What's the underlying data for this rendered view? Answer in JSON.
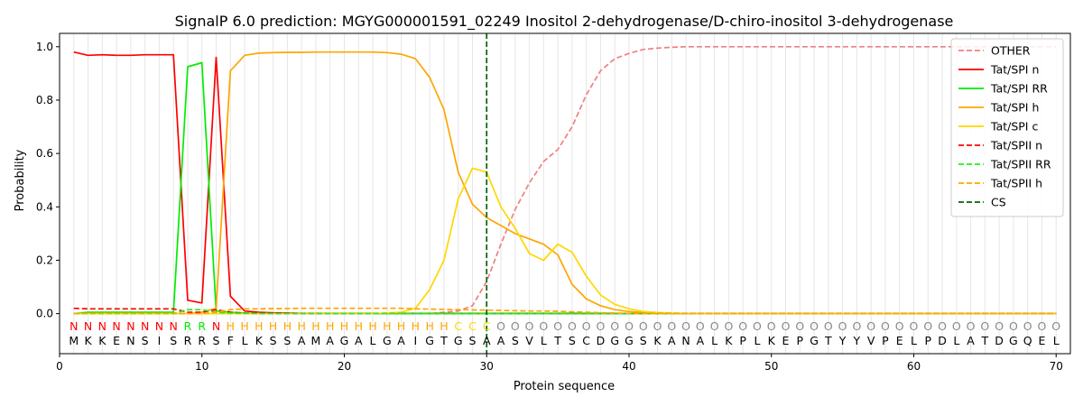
{
  "chart_data": {
    "type": "line",
    "title": "SignalP 6.0 prediction: MGYG000001591_02249 Inositol 2-dehydrogenase/D-chiro-inositol 3-dehydrogenase",
    "xlabel": "Protein sequence",
    "ylabel": "Probability",
    "xlim": [
      0,
      71
    ],
    "ylim": [
      -0.15,
      1.05
    ],
    "xticks": [
      0,
      10,
      20,
      30,
      40,
      50,
      60,
      70
    ],
    "yticks": [
      0.0,
      0.2,
      0.4,
      0.6,
      0.8,
      1.0
    ],
    "grid": "vertical lines at each residue position",
    "legend_position": "top-right",
    "sequence": [
      "M",
      "K",
      "K",
      "E",
      "N",
      "S",
      "I",
      "S",
      "R",
      "R",
      "S",
      "F",
      "L",
      "K",
      "S",
      "S",
      "A",
      "M",
      "A",
      "G",
      "A",
      "L",
      "G",
      "A",
      "I",
      "G",
      "T",
      "G",
      "S",
      "A",
      "A",
      "S",
      "V",
      "L",
      "T",
      "S",
      "C",
      "D",
      "G",
      "G",
      "S",
      "K",
      "A",
      "N",
      "A",
      "L",
      "K",
      "P",
      "L",
      "K",
      "E",
      "P",
      "G",
      "T",
      "Y",
      "Y",
      "V",
      "P",
      "E",
      "L",
      "P",
      "D",
      "L",
      "A",
      "T",
      "D",
      "G",
      "Q",
      "E",
      "L"
    ],
    "states": [
      "N",
      "N",
      "N",
      "N",
      "N",
      "N",
      "N",
      "N",
      "R",
      "R",
      "N",
      "H",
      "H",
      "H",
      "H",
      "H",
      "H",
      "H",
      "H",
      "H",
      "H",
      "H",
      "H",
      "H",
      "H",
      "H",
      "H",
      "C",
      "C",
      "C",
      "O",
      "O",
      "O",
      "O",
      "O",
      "O",
      "O",
      "O",
      "O",
      "O",
      "O",
      "O",
      "O",
      "O",
      "O",
      "O",
      "O",
      "O",
      "O",
      "O",
      "O",
      "O",
      "O",
      "O",
      "O",
      "O",
      "O",
      "O",
      "O",
      "O",
      "O",
      "O",
      "O",
      "O",
      "O",
      "O",
      "O",
      "O",
      "O",
      "O"
    ],
    "state_colors": {
      "N": "#ff0000",
      "R": "#00ee00",
      "H": "#ffa500",
      "C": "#ffd700",
      "O": "#888888"
    },
    "cleavage_site": 30,
    "series": [
      {
        "name": "OTHER",
        "color": "#f08080",
        "dash": true,
        "values": [
          0.0,
          0.0,
          0.0,
          0.0,
          0.0,
          0.0,
          0.0,
          0.0,
          0.0,
          0.0,
          0.0,
          0.0,
          0.0,
          0.0,
          0.0,
          0.0,
          0.0,
          0.0,
          0.0,
          0.0,
          0.0,
          0.0,
          0.0,
          0.0,
          0.0,
          0.0,
          0.005,
          0.01,
          0.03,
          0.12,
          0.26,
          0.39,
          0.49,
          0.57,
          0.615,
          0.7,
          0.82,
          0.91,
          0.955,
          0.975,
          0.99,
          0.995,
          0.998,
          1.0,
          1.0,
          1.0,
          1.0,
          1.0,
          1.0,
          1.0,
          1.0,
          1.0,
          1.0,
          1.0,
          1.0,
          1.0,
          1.0,
          1.0,
          1.0,
          1.0,
          1.0,
          1.0,
          1.0,
          1.0,
          1.0,
          1.0,
          1.0,
          1.0,
          1.0,
          1.0
        ]
      },
      {
        "name": "Tat/SPI n",
        "color": "#ff0000",
        "dash": false,
        "values": [
          0.98,
          0.968,
          0.97,
          0.968,
          0.968,
          0.97,
          0.97,
          0.97,
          0.05,
          0.04,
          0.96,
          0.065,
          0.01,
          0.005,
          0.003,
          0.002,
          0.001,
          0.001,
          0.001,
          0.001,
          0.001,
          0.001,
          0.001,
          0.001,
          0.001,
          0.001,
          0.001,
          0.001,
          0.001,
          0.001,
          0.001,
          0.001,
          0.001,
          0.001,
          0.001,
          0.001,
          0.001,
          0.001,
          0.0,
          0.0,
          0.0,
          0.0,
          0.0,
          0.0,
          0.0,
          0.0,
          0.0,
          0.0,
          0.0,
          0.0,
          0.0,
          0.0,
          0.0,
          0.0,
          0.0,
          0.0,
          0.0,
          0.0,
          0.0,
          0.0,
          0.0,
          0.0,
          0.0,
          0.0,
          0.0,
          0.0,
          0.0,
          0.0,
          0.0,
          0.0
        ]
      },
      {
        "name": "Tat/SPI RR",
        "color": "#00ee00",
        "dash": false,
        "values": [
          0.0,
          0.005,
          0.005,
          0.005,
          0.005,
          0.005,
          0.005,
          0.005,
          0.925,
          0.94,
          0.01,
          0.005,
          0.002,
          0.001,
          0.0,
          0.0,
          0.0,
          0.0,
          0.0,
          0.0,
          0.0,
          0.0,
          0.0,
          0.0,
          0.0,
          0.0,
          0.0,
          0.0,
          0.0,
          0.0,
          0.0,
          0.0,
          0.0,
          0.0,
          0.0,
          0.0,
          0.0,
          0.0,
          0.0,
          0.0,
          0.0,
          0.0,
          0.0,
          0.0,
          0.0,
          0.0,
          0.0,
          0.0,
          0.0,
          0.0,
          0.0,
          0.0,
          0.0,
          0.0,
          0.0,
          0.0,
          0.0,
          0.0,
          0.0,
          0.0,
          0.0,
          0.0,
          0.0,
          0.0,
          0.0,
          0.0,
          0.0,
          0.0,
          0.0,
          0.0
        ]
      },
      {
        "name": "Tat/SPI h",
        "color": "#ffa500",
        "dash": false,
        "values": [
          0.0,
          0.0,
          0.0,
          0.0,
          0.0,
          0.0,
          0.0,
          0.0,
          0.0,
          0.005,
          0.02,
          0.91,
          0.968,
          0.976,
          0.978,
          0.979,
          0.979,
          0.98,
          0.98,
          0.98,
          0.98,
          0.98,
          0.978,
          0.972,
          0.955,
          0.885,
          0.765,
          0.53,
          0.41,
          0.36,
          0.33,
          0.3,
          0.28,
          0.26,
          0.22,
          0.11,
          0.055,
          0.03,
          0.015,
          0.008,
          0.004,
          0.002,
          0.001,
          0.0,
          0.0,
          0.0,
          0.0,
          0.0,
          0.0,
          0.0,
          0.0,
          0.0,
          0.0,
          0.0,
          0.0,
          0.0,
          0.0,
          0.0,
          0.0,
          0.0,
          0.0,
          0.0,
          0.0,
          0.0,
          0.0,
          0.0,
          0.0,
          0.0,
          0.0,
          0.0
        ]
      },
      {
        "name": "Tat/SPI c",
        "color": "#ffd700",
        "dash": false,
        "values": [
          0.0,
          0.0,
          0.0,
          0.0,
          0.0,
          0.0,
          0.0,
          0.0,
          0.0,
          0.0,
          0.0,
          0.0,
          0.0,
          0.0,
          0.0,
          0.0,
          0.0,
          0.0,
          0.0,
          0.0,
          0.0,
          0.0,
          0.002,
          0.005,
          0.02,
          0.09,
          0.2,
          0.43,
          0.545,
          0.53,
          0.4,
          0.32,
          0.225,
          0.2,
          0.26,
          0.23,
          0.14,
          0.07,
          0.035,
          0.018,
          0.008,
          0.004,
          0.002,
          0.001,
          0.0,
          0.0,
          0.0,
          0.0,
          0.0,
          0.0,
          0.0,
          0.0,
          0.0,
          0.0,
          0.0,
          0.0,
          0.0,
          0.0,
          0.0,
          0.0,
          0.0,
          0.0,
          0.0,
          0.0,
          0.0,
          0.0,
          0.0,
          0.0,
          0.0,
          0.0
        ]
      },
      {
        "name": "Tat/SPII n",
        "color": "#ff0000",
        "dash": true,
        "values": [
          0.02,
          0.018,
          0.018,
          0.018,
          0.018,
          0.018,
          0.018,
          0.018,
          0.005,
          0.005,
          0.015,
          0.005,
          0.002,
          0.001,
          0.001,
          0.001,
          0.001,
          0.001,
          0.0,
          0.0,
          0.0,
          0.0,
          0.0,
          0.0,
          0.0,
          0.0,
          0.0,
          0.0,
          0.0,
          0.0,
          0.0,
          0.0,
          0.0,
          0.0,
          0.0,
          0.0,
          0.0,
          0.0,
          0.0,
          0.0,
          0.0,
          0.0,
          0.0,
          0.0,
          0.0,
          0.0,
          0.0,
          0.0,
          0.0,
          0.0,
          0.0,
          0.0,
          0.0,
          0.0,
          0.0,
          0.0,
          0.0,
          0.0,
          0.0,
          0.0,
          0.0,
          0.0,
          0.0,
          0.0,
          0.0,
          0.0,
          0.0,
          0.0,
          0.0,
          0.0
        ]
      },
      {
        "name": "Tat/SPII RR",
        "color": "#22ee22",
        "dash": true,
        "values": [
          0.0,
          0.0,
          0.0,
          0.0,
          0.0,
          0.0,
          0.0,
          0.0,
          0.015,
          0.015,
          0.005,
          0.002,
          0.001,
          0.0,
          0.0,
          0.0,
          0.0,
          0.0,
          0.0,
          0.0,
          0.0,
          0.0,
          0.0,
          0.0,
          0.0,
          0.0,
          0.0,
          0.0,
          0.0,
          0.0,
          0.0,
          0.0,
          0.0,
          0.0,
          0.0,
          0.0,
          0.0,
          0.0,
          0.0,
          0.0,
          0.0,
          0.0,
          0.0,
          0.0,
          0.0,
          0.0,
          0.0,
          0.0,
          0.0,
          0.0,
          0.0,
          0.0,
          0.0,
          0.0,
          0.0,
          0.0,
          0.0,
          0.0,
          0.0,
          0.0,
          0.0,
          0.0,
          0.0,
          0.0,
          0.0,
          0.0,
          0.0,
          0.0,
          0.0,
          0.0
        ]
      },
      {
        "name": "Tat/SPII h",
        "color": "#ffa500",
        "dash": true,
        "values": [
          0.0,
          0.0,
          0.0,
          0.0,
          0.0,
          0.0,
          0.0,
          0.0,
          0.0,
          0.0,
          0.005,
          0.015,
          0.018,
          0.018,
          0.019,
          0.019,
          0.02,
          0.02,
          0.02,
          0.02,
          0.02,
          0.02,
          0.02,
          0.02,
          0.018,
          0.017,
          0.016,
          0.015,
          0.014,
          0.013,
          0.012,
          0.011,
          0.01,
          0.01,
          0.009,
          0.007,
          0.005,
          0.003,
          0.002,
          0.001,
          0.0,
          0.0,
          0.0,
          0.0,
          0.0,
          0.0,
          0.0,
          0.0,
          0.0,
          0.0,
          0.0,
          0.0,
          0.0,
          0.0,
          0.0,
          0.0,
          0.0,
          0.0,
          0.0,
          0.0,
          0.0,
          0.0,
          0.0,
          0.0,
          0.0,
          0.0,
          0.0,
          0.0,
          0.0,
          0.0
        ]
      }
    ],
    "cs_series": {
      "name": "CS",
      "color": "#006400",
      "dash": true
    }
  }
}
